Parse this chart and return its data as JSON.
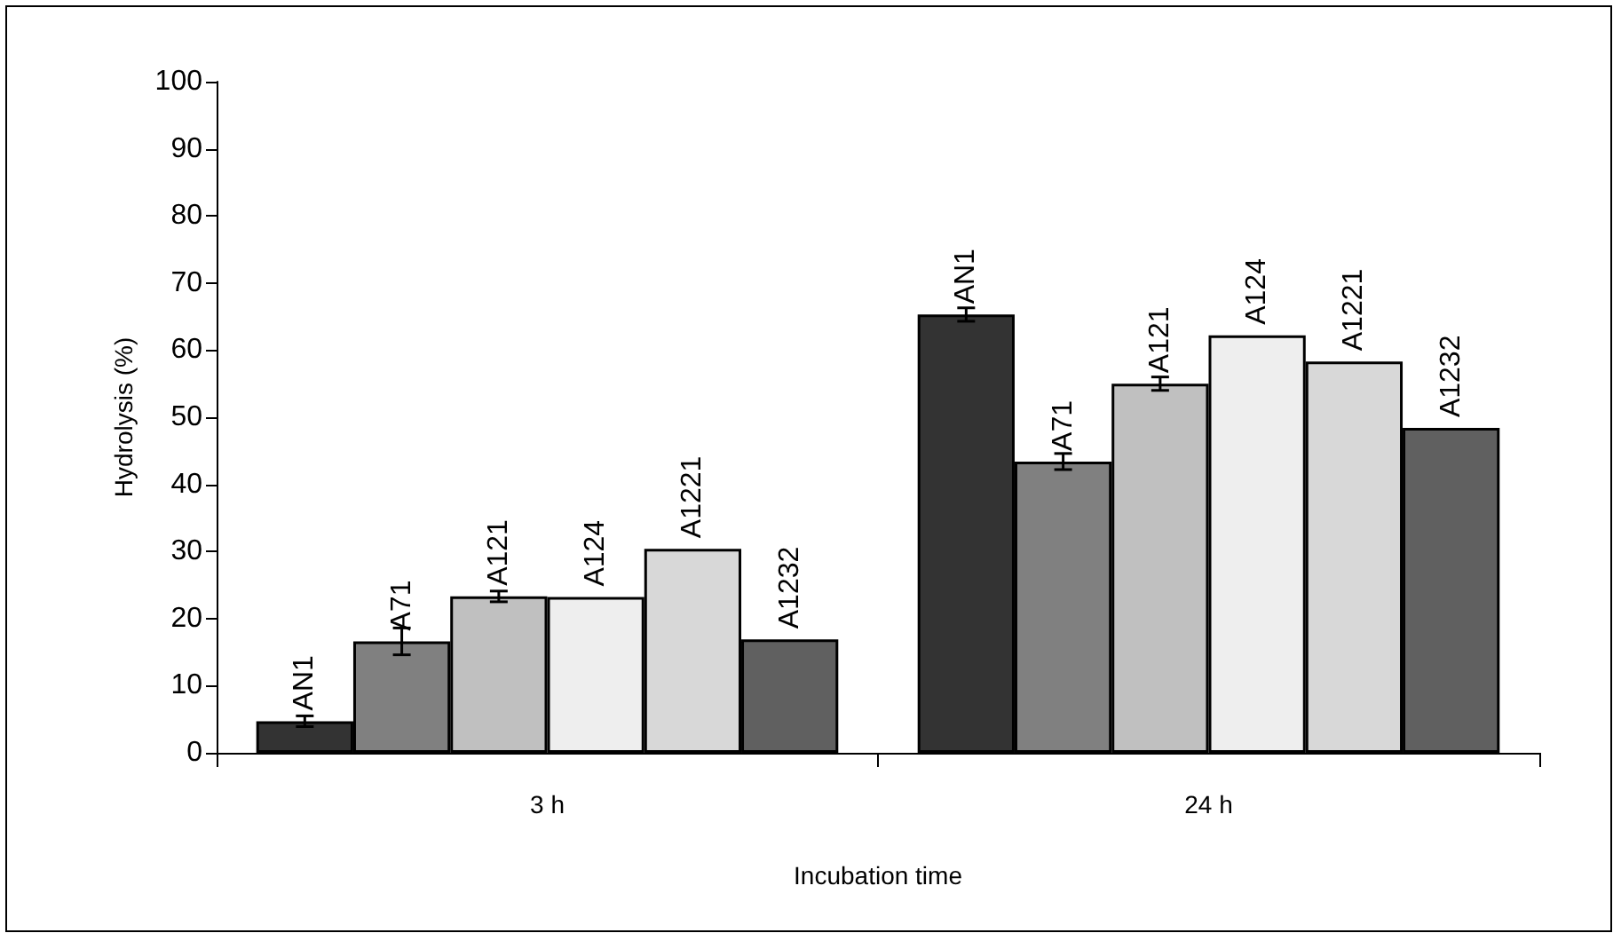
{
  "chart_data": {
    "type": "bar",
    "xlabel": "Incubation time",
    "ylabel": "Hydrolysis (%)",
    "categories": [
      "3 h",
      "24 h"
    ],
    "ylim": [
      0,
      100
    ],
    "yticks": [
      0,
      10,
      20,
      30,
      40,
      50,
      60,
      70,
      80,
      90,
      100
    ],
    "grid": false,
    "legend": false,
    "series": [
      {
        "name": "AN1",
        "color": "#333333",
        "values": [
          4.7,
          65.3
        ],
        "errors": [
          0.8,
          1
        ]
      },
      {
        "name": "A71",
        "color": "#808080",
        "values": [
          16.6,
          43.4
        ],
        "errors": [
          2,
          1.2
        ]
      },
      {
        "name": "A121",
        "color": "#c0c0c0",
        "values": [
          23.3,
          55
        ],
        "errors": [
          0.8,
          1
        ]
      },
      {
        "name": "A124",
        "color": "#eeeeee",
        "values": [
          23.2,
          62.2
        ]
      },
      {
        "name": "A1221",
        "color": "#d8d8d8",
        "values": [
          30.4,
          58.3
        ]
      },
      {
        "name": "A1232",
        "color": "#606060",
        "values": [
          16.9,
          48.4
        ]
      }
    ]
  }
}
